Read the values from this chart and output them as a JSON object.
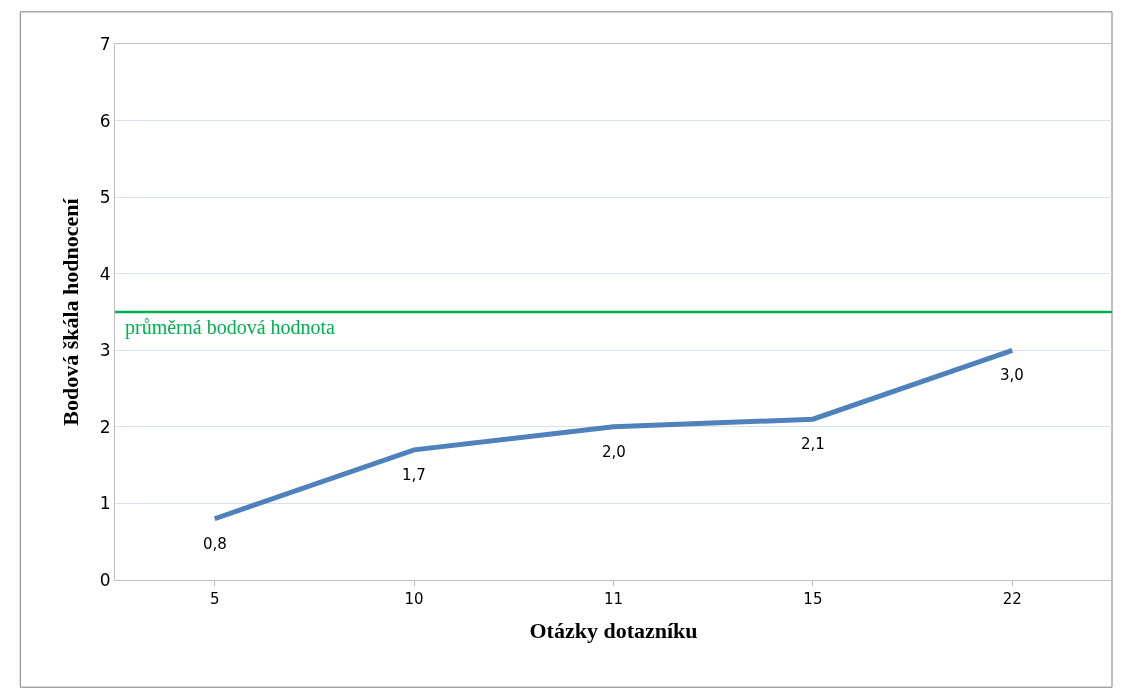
{
  "chart_data": {
    "type": "line",
    "xlabel": "Otázky dotazníku",
    "ylabel": "Bodová škála hodnocení",
    "categories": [
      "5",
      "10",
      "11",
      "15",
      "22"
    ],
    "series": [
      {
        "color": "#4f81bd",
        "values": [
          0.8,
          1.7,
          2.0,
          2.1,
          3.0
        ],
        "value_labels": [
          "0,8",
          "1,7",
          "2,0",
          "2,1",
          "3,0"
        ]
      }
    ],
    "ylim": [
      0,
      7
    ],
    "yticks": [
      0,
      1,
      2,
      3,
      4,
      5,
      6,
      7
    ],
    "grid": "y",
    "marker": "none",
    "line_style": "solid",
    "ref_lines": [
      {
        "axis": "y",
        "value": 3.5,
        "label": "průměrná bodová hodnota",
        "color": "#00b050",
        "line_style": "solid"
      }
    ]
  }
}
